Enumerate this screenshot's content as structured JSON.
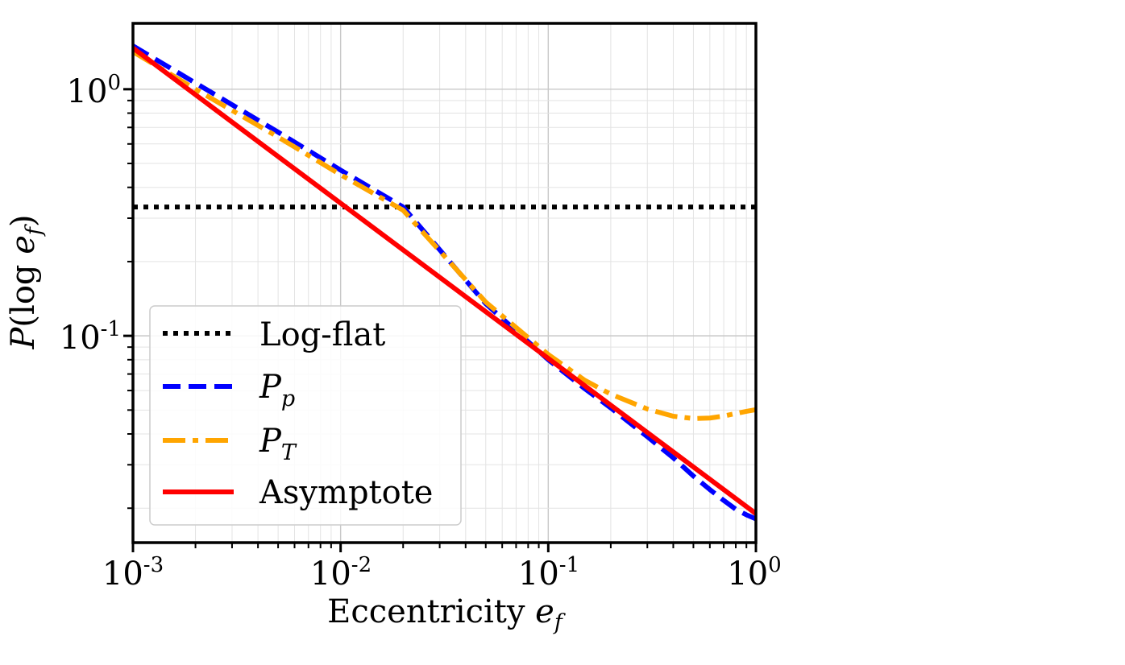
{
  "chart_data": {
    "type": "line",
    "xscale": "log",
    "yscale": "log",
    "xlim": [
      0.001,
      1.0
    ],
    "ylim": [
      0.0145,
      1.85
    ],
    "grid": true,
    "grid_minor": true,
    "xlabel": "Eccentricity e_f",
    "xlabel_text": "Eccentricity ",
    "xlabel_math": "e",
    "xlabel_sub": "f",
    "ylabel": "P(log e_f)",
    "ylabel_parts": {
      "P": "P",
      "open": "(log ",
      "e": "e",
      "sub": "f",
      "close": ")"
    },
    "x_ticks": [
      {
        "value": 0.001,
        "base": "10",
        "exp": "-3"
      },
      {
        "value": 0.01,
        "base": "10",
        "exp": "-2"
      },
      {
        "value": 0.1,
        "base": "10",
        "exp": "-1"
      },
      {
        "value": 1.0,
        "base": "10",
        "exp": "0"
      }
    ],
    "y_ticks": [
      {
        "value": 0.1,
        "base": "10",
        "exp": "-1"
      },
      {
        "value": 1.0,
        "base": "10",
        "exp": "0"
      }
    ],
    "legend_position": "lower-left",
    "series": [
      {
        "name": "Log-flat",
        "label_main": "Log-flat",
        "label_sub": "",
        "color": "#000000",
        "style": "dotted",
        "x": [
          0.001,
          1.0
        ],
        "y": [
          0.333,
          0.333
        ]
      },
      {
        "name": "P_p",
        "label_main": "P",
        "label_sub": "p",
        "color": "#0000ff",
        "style": "dashed",
        "x": [
          0.001,
          0.002,
          0.005,
          0.01,
          0.02,
          0.05,
          0.1,
          0.15,
          0.2,
          0.3,
          0.4,
          0.5,
          0.6,
          0.7,
          0.8,
          0.9,
          1.0
        ],
        "y": [
          1.5,
          1.06,
          0.67,
          0.47,
          0.333,
          0.135,
          0.08,
          0.061,
          0.051,
          0.039,
          0.032,
          0.027,
          0.0238,
          0.0215,
          0.0198,
          0.0188,
          0.0181
        ]
      },
      {
        "name": "P_T",
        "label_main": "P",
        "label_sub": "T",
        "color": "#ffa500",
        "style": "dashdot",
        "x": [
          0.001,
          0.002,
          0.005,
          0.01,
          0.02,
          0.05,
          0.1,
          0.15,
          0.2,
          0.3,
          0.4,
          0.5,
          0.6,
          0.7,
          0.8,
          0.9,
          1.0
        ],
        "y": [
          1.42,
          1.0,
          0.64,
          0.45,
          0.323,
          0.137,
          0.084,
          0.066,
          0.058,
          0.0505,
          0.0472,
          0.0462,
          0.0464,
          0.0473,
          0.0484,
          0.0494,
          0.0502
        ]
      },
      {
        "name": "Asymptote",
        "label_main": "Asymptote",
        "label_sub": "",
        "color": "#ff0000",
        "style": "solid",
        "x": [
          0.001,
          1.0
        ],
        "y": [
          1.47,
          0.019
        ]
      }
    ]
  }
}
